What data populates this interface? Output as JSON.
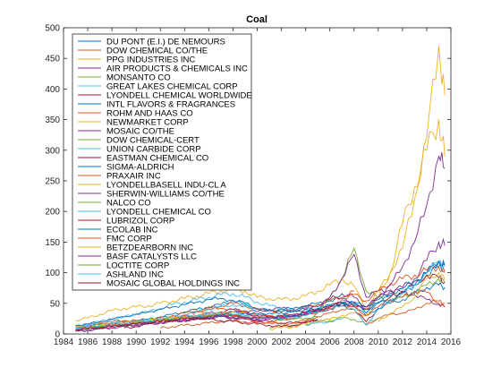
{
  "chart_data": {
    "type": "line",
    "title": "Coal",
    "xlabel": "",
    "ylabel": "",
    "xlim": [
      1984,
      2016
    ],
    "ylim": [
      0,
      500
    ],
    "xticks": [
      "1984",
      "1986",
      "1988",
      "1990",
      "1992",
      "1994",
      "1996",
      "1998",
      "2000",
      "2002",
      "2004",
      "2006",
      "2008",
      "2010",
      "2012",
      "2014",
      "2016"
    ],
    "yticks": [
      "0",
      "50",
      "100",
      "150",
      "200",
      "250",
      "300",
      "350",
      "400",
      "450",
      "500"
    ],
    "grid": false,
    "legend_position": "top-left",
    "x": [
      1985,
      1986,
      1987,
      1988,
      1989,
      1990,
      1991,
      1992,
      1993,
      1994,
      1995,
      1996,
      1997,
      1998,
      1999,
      2000,
      2001,
      2002,
      2003,
      2004,
      2005,
      2006,
      2007,
      2008,
      2009,
      2010,
      2011,
      2012,
      2013,
      2014,
      2015,
      2015.5
    ],
    "series": [
      {
        "name": "DU PONT (E.I.) DE NEMOURS",
        "color": "#0072bd",
        "values": [
          10,
          12,
          16,
          18,
          20,
          22,
          24,
          28,
          32,
          36,
          40,
          44,
          48,
          55,
          50,
          42,
          38,
          34,
          36,
          40,
          44,
          48,
          50,
          46,
          30,
          42,
          50,
          56,
          66,
          76,
          80,
          76
        ]
      },
      {
        "name": "DOW CHEMICAL CO/THE",
        "color": "#d95319",
        "values": [
          12,
          14,
          18,
          20,
          22,
          22,
          22,
          24,
          26,
          30,
          36,
          40,
          42,
          40,
          36,
          32,
          30,
          28,
          28,
          32,
          38,
          42,
          46,
          40,
          14,
          26,
          32,
          34,
          40,
          50,
          54,
          50
        ]
      },
      {
        "name": "PPG INDUSTRIES INC",
        "color": "#edb120",
        "values": [
          22,
          26,
          32,
          38,
          42,
          44,
          46,
          50,
          54,
          58,
          62,
          66,
          70,
          74,
          70,
          60,
          58,
          56,
          58,
          62,
          70,
          80,
          90,
          78,
          40,
          70,
          100,
          140,
          220,
          320,
          470,
          390
        ]
      },
      {
        "name": "AIR PRODUCTS & CHEMICALS INC",
        "color": "#7e2f8e",
        "values": [
          8,
          10,
          12,
          14,
          16,
          18,
          20,
          22,
          24,
          28,
          30,
          34,
          36,
          40,
          38,
          36,
          40,
          42,
          40,
          44,
          48,
          56,
          66,
          60,
          40,
          60,
          70,
          76,
          90,
          120,
          150,
          144
        ]
      },
      {
        "name": "MONSANTO CO",
        "color": "#77ac30",
        "values": [
          0,
          0,
          0,
          0,
          0,
          0,
          0,
          0,
          0,
          0,
          0,
          0,
          0,
          0,
          0,
          0,
          10,
          12,
          14,
          20,
          34,
          60,
          90,
          140,
          70,
          60,
          55,
          60,
          68,
          80,
          90,
          84
        ]
      },
      {
        "name": "GREAT LAKES CHEMICAL CORP",
        "color": "#4dbeee",
        "values": [
          12,
          16,
          20,
          24,
          28,
          32,
          36,
          42,
          48,
          52,
          56,
          60,
          64,
          66,
          60,
          52,
          46,
          42,
          38,
          36,
          40,
          0,
          0,
          0,
          0,
          0,
          0,
          0,
          0,
          0,
          0,
          0
        ]
      },
      {
        "name": "LYONDELL CHEMICAL WORLDWIDE",
        "color": "#a2142f",
        "values": [
          0,
          0,
          0,
          0,
          10,
          12,
          16,
          18,
          20,
          22,
          24,
          26,
          28,
          26,
          24,
          22,
          20,
          18,
          18,
          20,
          22,
          0,
          0,
          0,
          0,
          0,
          0,
          0,
          0,
          0,
          0,
          0
        ]
      },
      {
        "name": "INTL FLAVORS & FRAGRANCES",
        "color": "#0072bd",
        "values": [
          14,
          16,
          20,
          24,
          28,
          32,
          36,
          40,
          44,
          48,
          52,
          56,
          58,
          54,
          48,
          40,
          38,
          40,
          42,
          46,
          50,
          54,
          58,
          52,
          34,
          52,
          62,
          68,
          80,
          96,
          110,
          104
        ]
      },
      {
        "name": "ROHM AND HAAS CO",
        "color": "#d95319",
        "values": [
          10,
          12,
          14,
          16,
          18,
          20,
          22,
          26,
          30,
          34,
          38,
          42,
          46,
          50,
          46,
          40,
          38,
          36,
          38,
          42,
          48,
          54,
          60,
          70,
          0,
          0,
          0,
          0,
          0,
          0,
          0,
          0
        ]
      },
      {
        "name": "NEWMARKET CORP",
        "color": "#edb120",
        "values": [
          0,
          0,
          0,
          0,
          0,
          0,
          0,
          0,
          0,
          0,
          0,
          0,
          0,
          0,
          0,
          0,
          8,
          10,
          12,
          16,
          20,
          24,
          30,
          34,
          30,
          60,
          100,
          180,
          240,
          300,
          350,
          290
        ]
      },
      {
        "name": "MOSAIC CO/THE",
        "color": "#7e2f8e",
        "values": [
          0,
          0,
          0,
          0,
          0,
          0,
          0,
          0,
          0,
          0,
          0,
          0,
          0,
          0,
          0,
          0,
          0,
          0,
          0,
          0,
          40,
          60,
          90,
          130,
          60,
          70,
          72,
          68,
          64,
          56,
          48,
          44
        ]
      },
      {
        "name": "DOW CHEMICAL-CERT",
        "color": "#77ac30",
        "values": [
          10,
          12,
          14,
          16,
          18,
          20,
          22,
          24,
          26,
          28,
          30,
          32,
          34,
          32,
          30,
          28,
          26,
          24,
          24,
          26,
          28,
          0,
          0,
          0,
          0,
          0,
          0,
          0,
          0,
          0,
          0,
          0
        ]
      },
      {
        "name": "UNION CARBIDE CORP",
        "color": "#4dbeee",
        "values": [
          8,
          10,
          12,
          14,
          16,
          18,
          20,
          24,
          28,
          32,
          36,
          40,
          44,
          48,
          44,
          40,
          0,
          0,
          0,
          0,
          0,
          0,
          0,
          0,
          0,
          0,
          0,
          0,
          0,
          0,
          0,
          0
        ]
      },
      {
        "name": "EASTMAN CHEMICAL CO",
        "color": "#a2142f",
        "values": [
          0,
          0,
          0,
          0,
          0,
          0,
          0,
          0,
          0,
          20,
          24,
          28,
          32,
          36,
          34,
          30,
          28,
          26,
          28,
          32,
          36,
          40,
          46,
          40,
          20,
          40,
          60,
          70,
          80,
          96,
          92,
          84
        ]
      },
      {
        "name": "SIGMA-ALDRICH",
        "color": "#0072bd",
        "values": [
          6,
          8,
          10,
          12,
          14,
          16,
          18,
          20,
          22,
          24,
          26,
          28,
          30,
          28,
          26,
          24,
          26,
          28,
          30,
          34,
          38,
          44,
          50,
          52,
          44,
          56,
          66,
          74,
          86,
          100,
          118,
          112
        ]
      },
      {
        "name": "PRAXAIR INC",
        "color": "#d95319",
        "values": [
          0,
          0,
          0,
          0,
          0,
          0,
          0,
          10,
          12,
          14,
          16,
          18,
          20,
          22,
          20,
          18,
          20,
          22,
          26,
          30,
          36,
          44,
          56,
          64,
          54,
          70,
          82,
          90,
          96,
          104,
          110,
          100
        ]
      },
      {
        "name": "LYONDELLBASELL INDU-CL A",
        "color": "#edb120",
        "values": [
          0,
          0,
          0,
          0,
          0,
          0,
          0,
          0,
          0,
          0,
          0,
          0,
          0,
          0,
          0,
          0,
          0,
          0,
          0,
          0,
          0,
          0,
          0,
          0,
          0,
          20,
          34,
          44,
          60,
          90,
          100,
          88
        ]
      },
      {
        "name": "SHERWIN-WILLIAMS CO/THE",
        "color": "#7e2f8e",
        "values": [
          4,
          6,
          8,
          10,
          12,
          14,
          16,
          18,
          20,
          22,
          24,
          26,
          28,
          26,
          24,
          22,
          24,
          26,
          28,
          32,
          38,
          44,
          52,
          50,
          44,
          60,
          80,
          110,
          150,
          210,
          290,
          270
        ]
      },
      {
        "name": "NALCO CO",
        "color": "#77ac30",
        "values": [
          0,
          0,
          0,
          0,
          0,
          0,
          0,
          0,
          0,
          0,
          0,
          0,
          0,
          0,
          0,
          0,
          0,
          0,
          0,
          16,
          20,
          22,
          26,
          24,
          16,
          26,
          0,
          0,
          0,
          0,
          0,
          0
        ]
      },
      {
        "name": "LYONDELL CHEMICAL CO",
        "color": "#4dbeee",
        "values": [
          0,
          0,
          0,
          0,
          0,
          0,
          0,
          0,
          0,
          0,
          0,
          0,
          0,
          0,
          0,
          0,
          0,
          0,
          0,
          14,
          18,
          20,
          24,
          0,
          0,
          0,
          0,
          0,
          0,
          0,
          0,
          0
        ]
      },
      {
        "name": "LUBRIZOL CORP",
        "color": "#a2142f",
        "values": [
          8,
          10,
          12,
          14,
          16,
          18,
          20,
          22,
          24,
          26,
          28,
          30,
          32,
          30,
          28,
          26,
          28,
          30,
          32,
          36,
          40,
          44,
          50,
          46,
          40,
          0,
          0,
          0,
          0,
          0,
          0,
          0
        ]
      },
      {
        "name": "ECOLAB INC",
        "color": "#0072bd",
        "values": [
          6,
          8,
          10,
          12,
          14,
          16,
          18,
          20,
          22,
          24,
          26,
          28,
          32,
          36,
          34,
          32,
          34,
          36,
          38,
          40,
          42,
          46,
          50,
          48,
          40,
          50,
          56,
          66,
          80,
          100,
          118,
          112
        ]
      },
      {
        "name": "FMC CORP",
        "color": "#d95319",
        "values": [
          8,
          10,
          12,
          14,
          16,
          18,
          20,
          22,
          24,
          26,
          28,
          30,
          32,
          30,
          26,
          20,
          18,
          16,
          18,
          22,
          28,
          34,
          40,
          44,
          30,
          44,
          54,
          60,
          70,
          68,
          50,
          44
        ]
      },
      {
        "name": "BETZDEARBORN INC",
        "color": "#edb120",
        "values": [
          10,
          12,
          14,
          16,
          18,
          20,
          22,
          24,
          26,
          28,
          30,
          32,
          34,
          36,
          34,
          0,
          0,
          0,
          0,
          0,
          0,
          0,
          0,
          0,
          0,
          0,
          0,
          0,
          0,
          0,
          0,
          0
        ]
      },
      {
        "name": "BASF CATALYSTS LLC",
        "color": "#7e2f8e",
        "values": [
          6,
          8,
          10,
          12,
          14,
          16,
          18,
          20,
          22,
          24,
          26,
          28,
          30,
          28,
          26,
          24,
          26,
          28,
          30,
          34,
          38,
          0,
          0,
          0,
          0,
          0,
          0,
          0,
          0,
          0,
          0,
          0
        ]
      },
      {
        "name": "LOCTITE CORP",
        "color": "#77ac30",
        "values": [
          8,
          10,
          12,
          14,
          16,
          18,
          20,
          22,
          24,
          26,
          28,
          30,
          32,
          0,
          0,
          0,
          0,
          0,
          0,
          0,
          0,
          0,
          0,
          0,
          0,
          0,
          0,
          0,
          0,
          0,
          0,
          0
        ]
      },
      {
        "name": "ASHLAND INC",
        "color": "#4dbeee",
        "values": [
          10,
          12,
          14,
          16,
          18,
          20,
          22,
          24,
          26,
          28,
          30,
          32,
          34,
          32,
          30,
          28,
          26,
          24,
          26,
          30,
          36,
          40,
          46,
          40,
          14,
          40,
          54,
          66,
          80,
          100,
          120,
          110
        ]
      },
      {
        "name": "MOSAIC GLOBAL HOLDINGS INC",
        "color": "#a2142f",
        "values": [
          6,
          8,
          10,
          12,
          14,
          16,
          18,
          20,
          22,
          24,
          26,
          24,
          22,
          20,
          18,
          16,
          14,
          12,
          14,
          18,
          24,
          0,
          0,
          0,
          0,
          0,
          0,
          0,
          0,
          0,
          0,
          0
        ]
      }
    ]
  }
}
